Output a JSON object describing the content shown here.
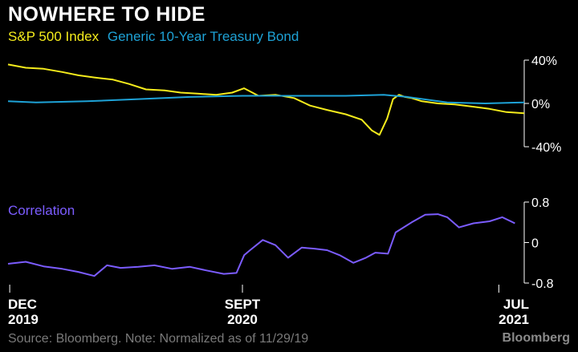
{
  "header": {
    "title": "NOWHERE TO HIDE"
  },
  "footer": {
    "source": "Source: Bloomberg. Note: Normalized as of 11/29/19",
    "brand": "Bloomberg"
  },
  "colors": {
    "sp500": "#f5ec1c",
    "treasury": "#1ea2d6",
    "correlation": "#7b5cff",
    "axis": "#ffffff"
  },
  "chart_data": [
    {
      "type": "line",
      "title": "",
      "x_range": [
        "2019-11-29",
        "2021-07-31"
      ],
      "ylim": [
        -40,
        40
      ],
      "y_ticks": [
        {
          "value": 40,
          "label": "40%"
        },
        {
          "value": 0,
          "label": "0%"
        },
        {
          "value": -40,
          "label": "-40%"
        }
      ],
      "series": [
        {
          "name": "S&P 500 Index",
          "color": "#f5ec1c",
          "x": [
            "2019-11-29",
            "2019-12-20",
            "2020-01-10",
            "2020-02-01",
            "2020-02-20",
            "2020-03-10",
            "2020-04-01",
            "2020-04-20",
            "2020-05-10",
            "2020-06-01",
            "2020-06-20",
            "2020-07-10",
            "2020-08-01",
            "2020-08-20",
            "2020-09-03",
            "2020-09-20",
            "2020-10-10",
            "2020-11-01",
            "2020-11-20",
            "2020-12-10",
            "2021-01-01",
            "2021-01-20",
            "2021-02-01",
            "2021-02-10",
            "2021-02-19",
            "2021-02-26",
            "2021-03-05",
            "2021-03-12",
            "2021-03-20",
            "2021-04-01",
            "2021-04-20",
            "2021-05-10",
            "2021-06-01",
            "2021-06-20",
            "2021-07-10",
            "2021-07-31"
          ],
          "values": [
            36,
            33,
            32,
            29,
            26,
            24,
            22,
            18,
            13,
            12,
            10,
            9,
            8,
            10,
            14,
            7,
            8,
            5,
            -2,
            -6,
            -10,
            -15,
            -25,
            -29,
            -14,
            4,
            8,
            6,
            5,
            2,
            0,
            -1,
            -3,
            -5,
            -8,
            -9
          ]
        },
        {
          "name": "Generic 10-Year Treasury Bond",
          "color": "#1ea2d6",
          "x": [
            "2019-11-29",
            "2020-01-01",
            "2020-03-01",
            "2020-05-01",
            "2020-07-01",
            "2020-09-01",
            "2020-11-01",
            "2021-01-01",
            "2021-02-15",
            "2021-03-15",
            "2021-05-01",
            "2021-06-15",
            "2021-07-31"
          ],
          "values": [
            2,
            1,
            2,
            4,
            6,
            7,
            7,
            7,
            8,
            6,
            1,
            0,
            1
          ]
        }
      ]
    },
    {
      "type": "line",
      "title": "",
      "x_range": [
        "2019-11-29",
        "2021-07-31"
      ],
      "ylim": [
        -0.8,
        0.8
      ],
      "y_ticks": [
        {
          "value": 0.8,
          "label": "0.8"
        },
        {
          "value": 0,
          "label": "0"
        },
        {
          "value": -0.8,
          "label": "-0.8"
        }
      ],
      "x_ticks": [
        {
          "date": "2019-12-01",
          "label": "DEC",
          "sublabel": "2019"
        },
        {
          "date": "2020-09-01",
          "label": "SEPT",
          "sublabel": "2020"
        },
        {
          "date": "2021-07-01",
          "label": "JUL",
          "sublabel": "2021"
        }
      ],
      "series": [
        {
          "name": "Correlation",
          "color": "#7b5cff",
          "x": [
            "2019-11-29",
            "2019-12-20",
            "2020-01-10",
            "2020-02-01",
            "2020-02-20",
            "2020-03-10",
            "2020-03-25",
            "2020-04-10",
            "2020-05-01",
            "2020-05-20",
            "2020-06-10",
            "2020-07-01",
            "2020-07-20",
            "2020-08-10",
            "2020-08-25",
            "2020-09-03",
            "2020-09-10",
            "2020-09-25",
            "2020-10-10",
            "2020-10-25",
            "2020-11-10",
            "2020-11-25",
            "2020-12-10",
            "2020-12-25",
            "2021-01-10",
            "2021-01-25",
            "2021-02-05",
            "2021-02-20",
            "2021-03-01",
            "2021-03-20",
            "2021-04-05",
            "2021-04-20",
            "2021-05-01",
            "2021-05-15",
            "2021-06-01",
            "2021-06-20",
            "2021-07-05",
            "2021-07-20"
          ],
          "values": [
            -0.42,
            -0.38,
            -0.47,
            -0.52,
            -0.58,
            -0.66,
            -0.45,
            -0.5,
            -0.48,
            -0.45,
            -0.52,
            -0.48,
            -0.55,
            -0.62,
            -0.6,
            -0.25,
            -0.15,
            0.05,
            -0.05,
            -0.3,
            -0.1,
            -0.12,
            -0.15,
            -0.25,
            -0.4,
            -0.3,
            -0.2,
            -0.22,
            0.2,
            0.4,
            0.55,
            0.56,
            0.5,
            0.3,
            0.38,
            0.42,
            0.5,
            0.38
          ]
        }
      ]
    }
  ]
}
